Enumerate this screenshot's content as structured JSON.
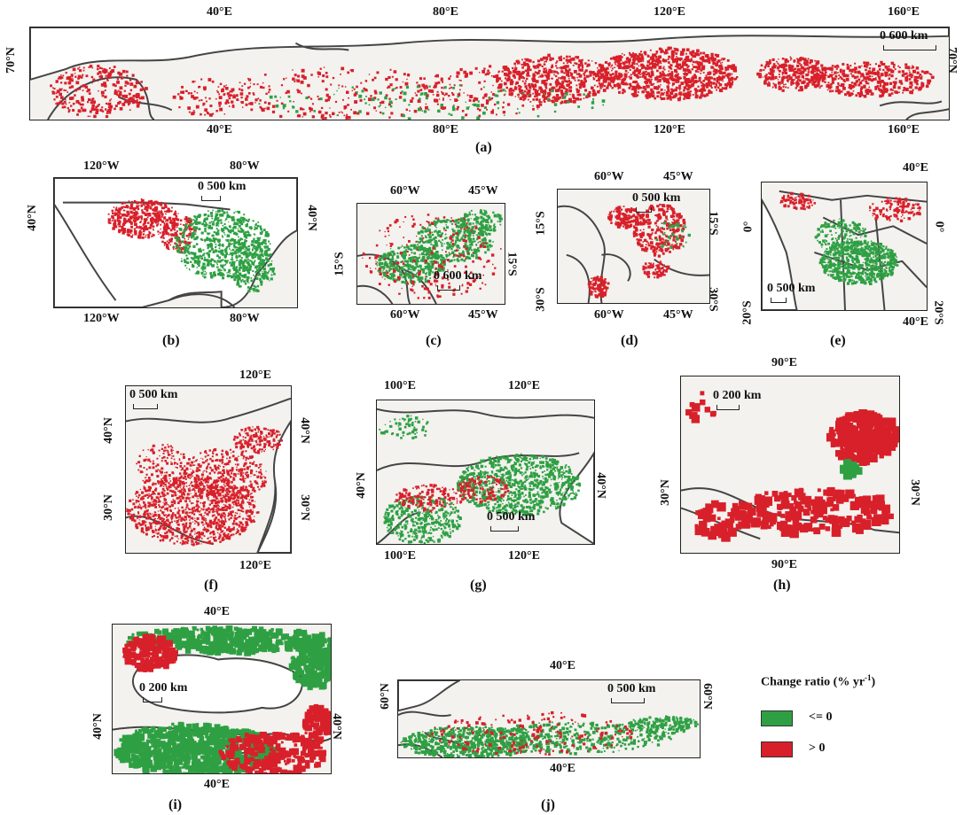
{
  "colors": {
    "decrease": "#2ea043",
    "increase": "#d8202a",
    "land": "#f3f2ef",
    "border": "#444444"
  },
  "legend": {
    "title": "Change ratio (% yr",
    "title_sup": "-1",
    "title_end": ")",
    "items": [
      {
        "label": "<= 0",
        "color": "#2ea043"
      },
      {
        "label": "> 0",
        "color": "#d8202a"
      }
    ]
  },
  "panels": {
    "a": {
      "label": "(a)",
      "top": [
        "40°E",
        "80°E",
        "120°E",
        "160°E"
      ],
      "bottom": [
        "40°E",
        "80°E",
        "120°E",
        "160°E"
      ],
      "left": "70°N",
      "right": "70°N",
      "scale": "0    600 km"
    },
    "b": {
      "label": "(b)",
      "top": [
        "120°W",
        "80°W"
      ],
      "bottom": [
        "120°W",
        "80°W"
      ],
      "left": "40°N",
      "right": "40°N",
      "scale": "0 500 km"
    },
    "c": {
      "label": "(c)",
      "top": [
        "60°W",
        "45°W"
      ],
      "bottom": [
        "60°W",
        "45°W"
      ],
      "left": "15°S",
      "right": "15°S",
      "scale": "0   600 km"
    },
    "d": {
      "label": "(d)",
      "top": [
        "60°W",
        "45°W"
      ],
      "bottom": [
        "60°W",
        "45°W"
      ],
      "left_top": "15°S",
      "left_bottom": "30°S",
      "right_top": "15°S",
      "right_bottom": "30°S",
      "scale": "0  500 km"
    },
    "e": {
      "label": "(e)",
      "top": [
        "40°E"
      ],
      "bottom": [
        "40°E"
      ],
      "left_top": "0°",
      "left_bottom": "20°S",
      "right_top": "0°",
      "right_bottom": "20°S",
      "scale": "0 500 km"
    },
    "f": {
      "label": "(f)",
      "top": [
        "120°E"
      ],
      "bottom": [
        "120°E"
      ],
      "left_top": "40°N",
      "left_bottom": "30°N",
      "right_top": "40°N",
      "right_bottom": "30°N",
      "scale": "0   500 km"
    },
    "g": {
      "label": "(g)",
      "top": [
        "100°E",
        "120°E"
      ],
      "bottom": [
        "100°E",
        "120°E"
      ],
      "left": "40°N",
      "right": "40°N",
      "scale": "0    500 km"
    },
    "h": {
      "label": "(h)",
      "top": [
        "90°E"
      ],
      "bottom": [
        "90°E"
      ],
      "left": "30°N",
      "right": "30°N",
      "scale": "0   200 km"
    },
    "i": {
      "label": "(i)",
      "top": [
        "40°E"
      ],
      "bottom": [
        "40°E"
      ],
      "left": "40°N",
      "right": "40°N",
      "scale": "0 200 km"
    },
    "j": {
      "label": "(j)",
      "top": [
        "40°E"
      ],
      "bottom": [
        "40°E"
      ],
      "left": "60°N",
      "right": "60°N",
      "scale": "0      500 km"
    }
  }
}
